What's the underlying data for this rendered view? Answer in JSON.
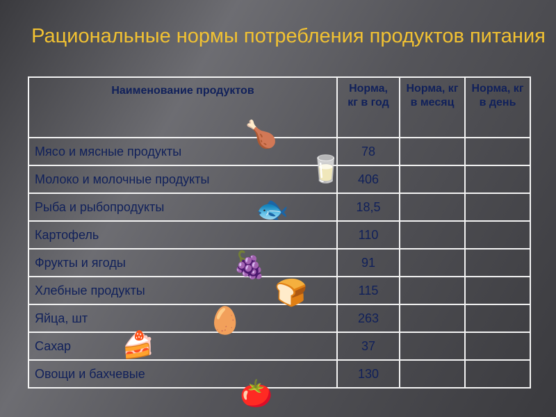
{
  "title": "Рациональные нормы потребления продуктов питания",
  "headers": [
    "Наименование продуктов",
    "Норма, кг в год",
    "Норма, кг в месяц",
    "Норма, кг в день"
  ],
  "rows": [
    {
      "name": "Мясо и мясные продукты",
      "year": "78",
      "icon": "roast-chicken-icon"
    },
    {
      "name": "Молоко и молочные продукты",
      "year": "406",
      "icon": "kefir-carton-icon"
    },
    {
      "name": "Рыба и рыбопродукты",
      "year": "18,5",
      "icon": "fish-plate-icon"
    },
    {
      "name": "Картофель",
      "year": "110"
    },
    {
      "name": "Фрукты и ягоды",
      "year": "91",
      "icon": "fruit-icon"
    },
    {
      "name": "Хлебные продукты",
      "year": "115",
      "icon": "bread-icon"
    },
    {
      "name": "Яйца, шт",
      "year": "263",
      "icon": "egg-carton-icon"
    },
    {
      "name": "Сахар",
      "year": "37",
      "icon": "cake-icon"
    },
    {
      "name": "Овощи и бахчевые",
      "year": "130",
      "icon": "radish-icon"
    }
  ]
}
